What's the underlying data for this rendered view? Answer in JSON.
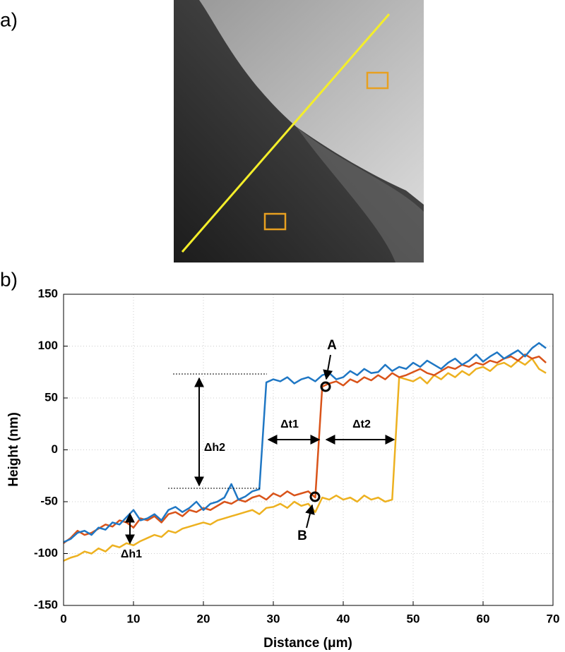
{
  "panel_labels": [
    "a)",
    "b)"
  ],
  "chart_data": {
    "type": "line",
    "xlabel": "Distance (μm)",
    "ylabel": "Height (nm)",
    "xlim": [
      0,
      70
    ],
    "xticks": [
      0,
      10,
      20,
      30,
      40,
      50,
      60,
      70
    ],
    "ylim": [
      -150,
      150
    ],
    "yticks": [
      -150,
      -100,
      -50,
      0,
      50,
      100,
      150
    ],
    "grid": true,
    "x": [
      0,
      1,
      2,
      3,
      4,
      5,
      6,
      7,
      8,
      9,
      10,
      11,
      12,
      13,
      14,
      15,
      16,
      17,
      18,
      19,
      20,
      21,
      22,
      23,
      24,
      25,
      26,
      27,
      28,
      29,
      30,
      31,
      32,
      33,
      34,
      35,
      36,
      37,
      38,
      39,
      40,
      41,
      42,
      43,
      44,
      45,
      46,
      47,
      48,
      49,
      50,
      51,
      52,
      53,
      54,
      55,
      56,
      57,
      58,
      59,
      60,
      61,
      62,
      63,
      64,
      65,
      66,
      67,
      68,
      69
    ],
    "series": [
      {
        "color": "#1f77c4",
        "values": [
          -89,
          -86,
          -80,
          -78,
          -82,
          -75,
          -77,
          -70,
          -72,
          -65,
          -58,
          -68,
          -66,
          -62,
          -68,
          -58,
          -55,
          -60,
          -56,
          -50,
          -58,
          -52,
          -50,
          -46,
          -33,
          -48,
          -45,
          -40,
          -38,
          65,
          68,
          66,
          70,
          64,
          68,
          70,
          66,
          72,
          74,
          68,
          70,
          76,
          72,
          78,
          74,
          75,
          82,
          76,
          80,
          78,
          84,
          80,
          86,
          82,
          78,
          84,
          88,
          82,
          86,
          92,
          85,
          90,
          94,
          88,
          92,
          96,
          90,
          98,
          103,
          98
        ]
      },
      {
        "color": "#d95319",
        "values": [
          -90,
          -85,
          -78,
          -82,
          -80,
          -76,
          -72,
          -74,
          -68,
          -70,
          -75,
          -66,
          -68,
          -64,
          -70,
          -62,
          -60,
          -64,
          -58,
          -60,
          -56,
          -58,
          -54,
          -50,
          -52,
          -48,
          -50,
          -46,
          -44,
          -48,
          -42,
          -45,
          -40,
          -44,
          -42,
          -40,
          -46,
          61,
          64,
          66,
          62,
          68,
          65,
          70,
          67,
          72,
          68,
          74,
          70,
          72,
          75,
          78,
          74,
          72,
          76,
          80,
          78,
          82,
          80,
          84,
          82,
          86,
          84,
          88,
          90,
          86,
          92,
          88,
          90,
          84
        ]
      },
      {
        "color": "#edb120",
        "values": [
          -107,
          -104,
          -102,
          -98,
          -100,
          -95,
          -98,
          -92,
          -94,
          -90,
          -92,
          -88,
          -85,
          -82,
          -84,
          -78,
          -80,
          -76,
          -74,
          -72,
          -70,
          -72,
          -68,
          -66,
          -64,
          -62,
          -60,
          -58,
          -62,
          -56,
          -55,
          -52,
          -56,
          -50,
          -54,
          -52,
          -60,
          -46,
          -48,
          -44,
          -48,
          -46,
          -50,
          -44,
          -48,
          -46,
          -50,
          -48,
          70,
          68,
          66,
          70,
          64,
          72,
          68,
          74,
          70,
          76,
          72,
          78,
          80,
          76,
          82,
          84,
          80,
          86,
          82,
          88,
          78,
          74
        ]
      }
    ],
    "annotations": [
      "A",
      "B",
      "Δh1",
      "Δh2",
      "Δt1",
      "Δt2"
    ]
  }
}
